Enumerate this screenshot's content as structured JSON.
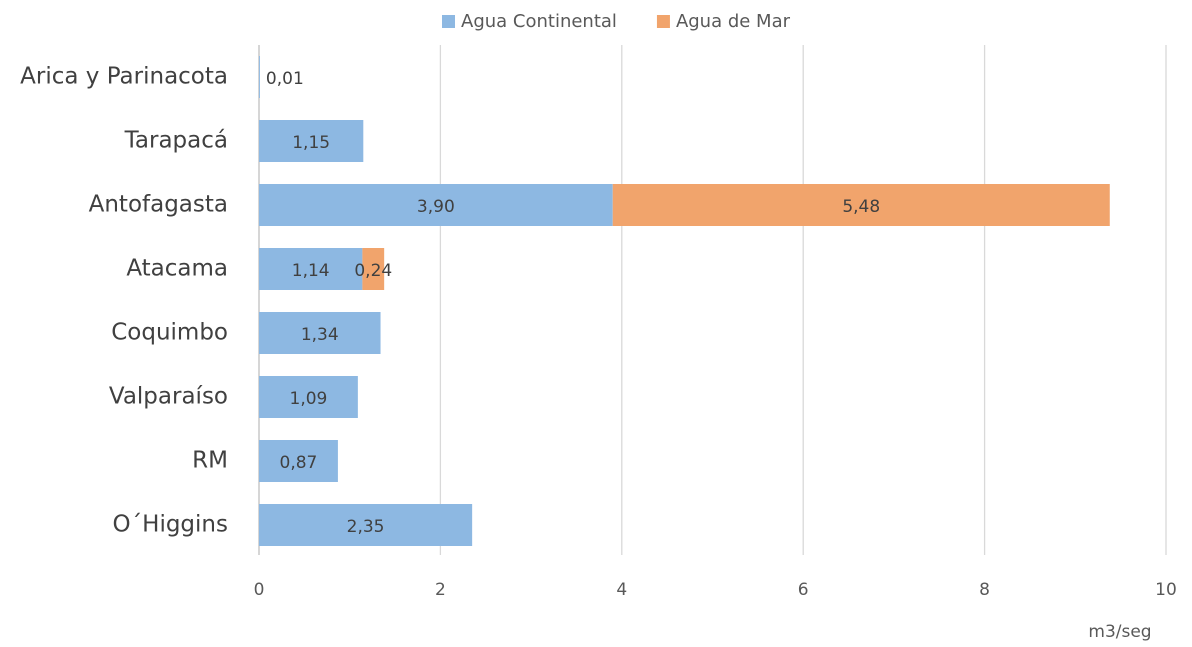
{
  "chart_data": {
    "type": "bar",
    "orientation": "horizontal",
    "stacked": true,
    "categories": [
      "Arica y Parinacota",
      "Tarapacá",
      "Antofagasta",
      "Atacama",
      "Coquimbo",
      "Valparaíso",
      "RM",
      "O´Higgins"
    ],
    "series": [
      {
        "name": "Agua Continental",
        "color": "#8db8e2",
        "values": [
          0.01,
          1.15,
          3.9,
          1.14,
          1.34,
          1.09,
          0.87,
          2.35
        ],
        "value_labels": [
          "0,01",
          "1,15",
          "3,90",
          "1,14",
          "1,34",
          "1,09",
          "0,87",
          "2,35"
        ]
      },
      {
        "name": "Agua de Mar",
        "color": "#f1a46c",
        "values": [
          null,
          null,
          5.48,
          0.24,
          null,
          null,
          null,
          null
        ],
        "value_labels": [
          null,
          null,
          "5,48",
          "0,24",
          null,
          null,
          null,
          null
        ]
      }
    ],
    "xlim": [
      0,
      10
    ],
    "xticks": [
      0,
      2,
      4,
      6,
      8,
      10
    ],
    "xlabel": "m3/seg",
    "grid": true,
    "legend": "top"
  }
}
